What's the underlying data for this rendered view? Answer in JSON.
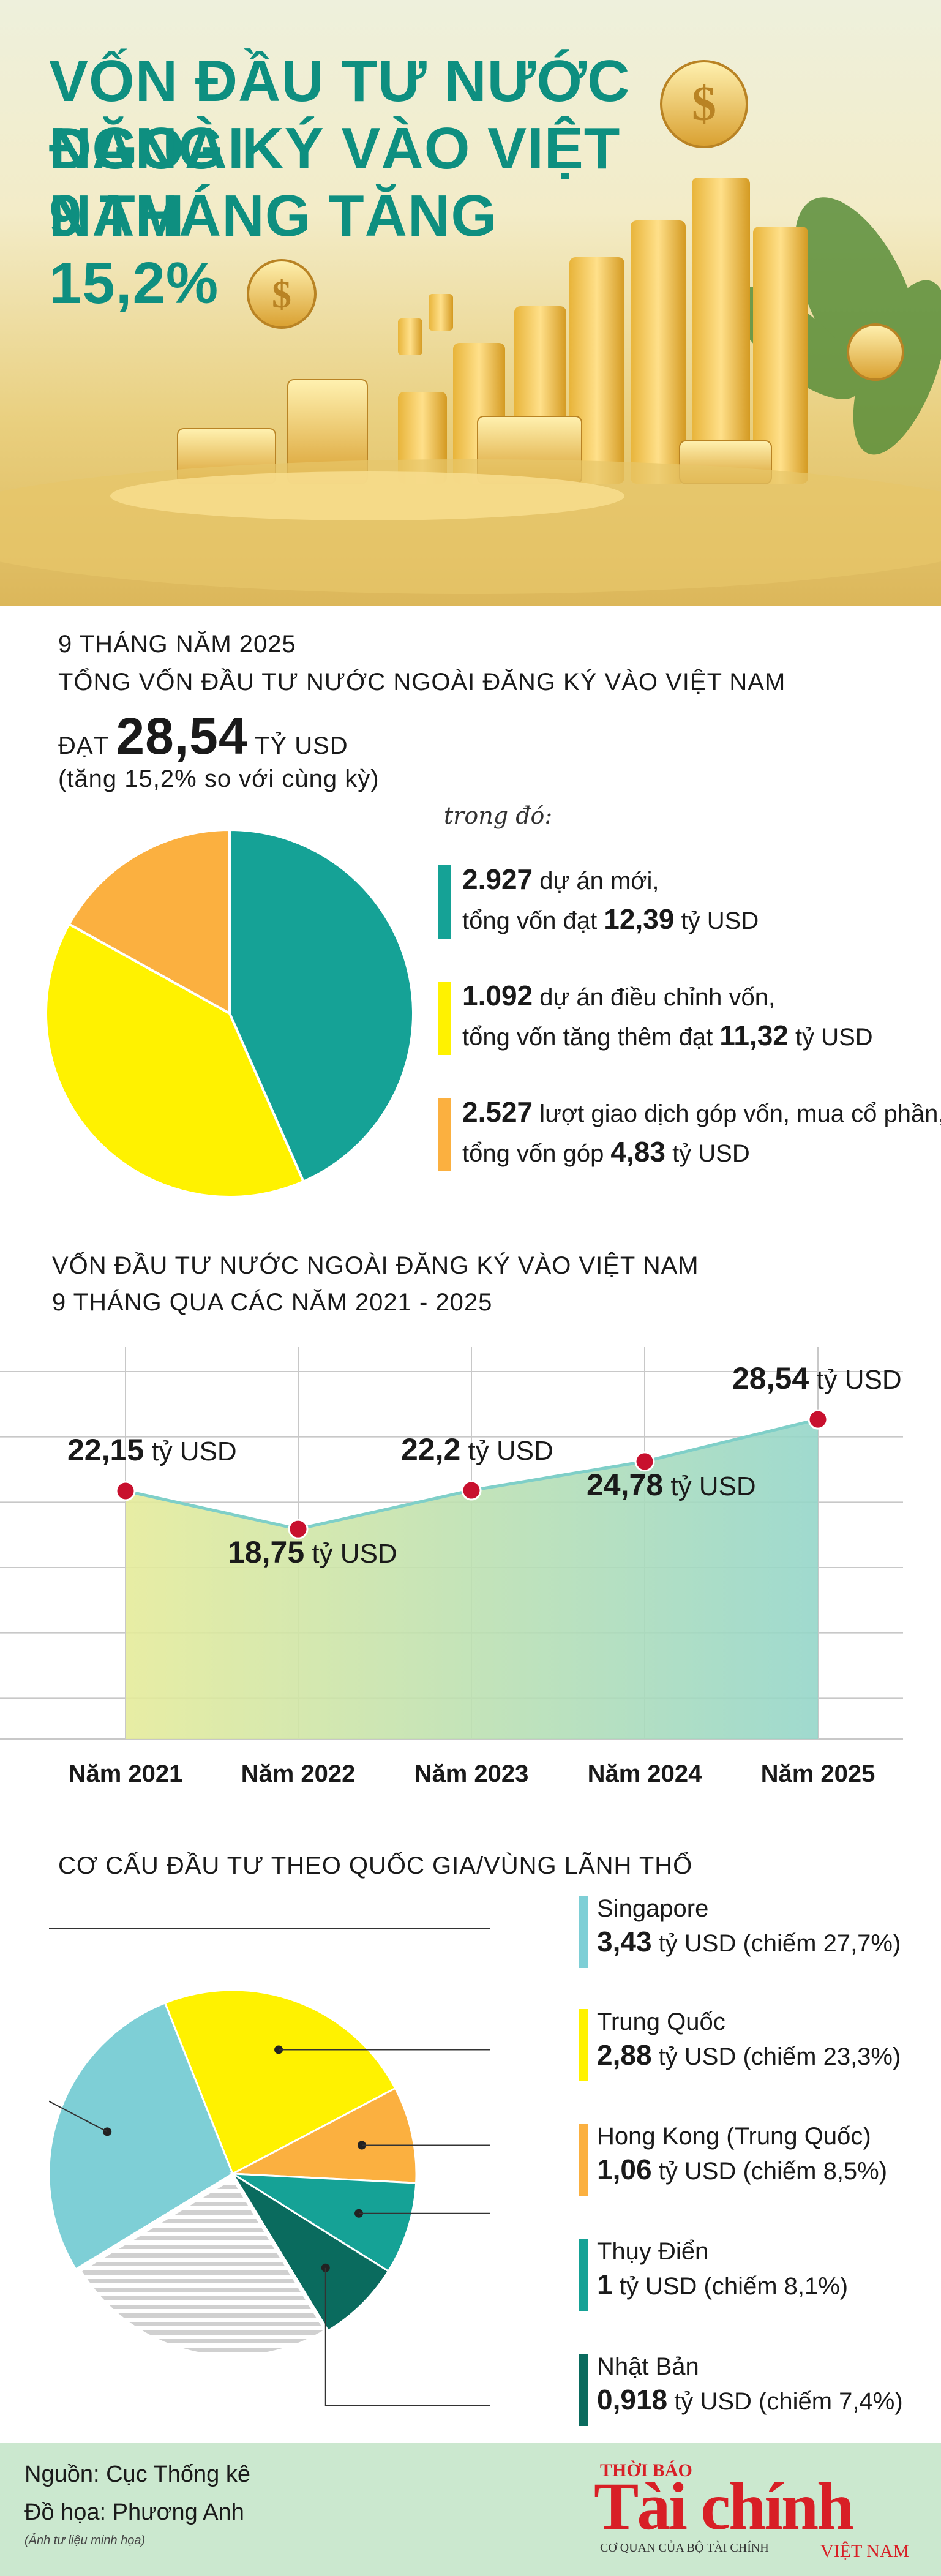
{
  "header": {
    "title_lines": [
      "VỐN ĐẦU TƯ NƯỚC NGOÀI",
      "ĐĂNG KÝ VÀO VIỆT NAM",
      "9 THÁNG TĂNG 15,2%"
    ]
  },
  "summary": {
    "period": "9 THÁNG NĂM 2025",
    "heading": "TỔNG VỐN ĐẦU TƯ NƯỚC NGOÀI ĐĂNG KÝ VÀO VIỆT NAM",
    "reach_label": "ĐẠT",
    "total_value": "28,54",
    "total_unit": "TỶ USD",
    "growth_note": "(tăng 15,2% so với cùng kỳ)",
    "breakdown_label": "trong đó:",
    "items": [
      {
        "count": "2.927",
        "count_text": " dự án mới,",
        "value_prefix": "tổng vốn đạt ",
        "value": "12,39",
        "value_unit": " tỷ USD",
        "color": "#15a296"
      },
      {
        "count": "1.092",
        "count_text": " dự án điều chỉnh vốn,",
        "value_prefix": "tổng vốn tăng thêm đạt ",
        "value": "11,32",
        "value_unit": " tỷ USD",
        "color": "#fff200"
      },
      {
        "count": "2.527",
        "count_text": " lượt giao dịch góp vốn, mua cổ phần,",
        "value_prefix": "tổng vốn góp ",
        "value": "4,83",
        "value_unit": " tỷ USD",
        "color": "#fbb040"
      }
    ]
  },
  "chart_data": [
    {
      "type": "pie",
      "title": "",
      "categories": [
        "dự án mới",
        "dự án điều chỉnh vốn",
        "góp vốn, mua cổ phần"
      ],
      "values": [
        12.39,
        11.32,
        4.83
      ],
      "colors": [
        "#15a296",
        "#fff200",
        "#fbb040"
      ]
    },
    {
      "type": "area",
      "title": "VỐN ĐẦU TƯ NƯỚC NGOÀI ĐĂNG KÝ VÀO VIỆT NAM",
      "subtitle": "9 THÁNG QUA CÁC NĂM 2021 - 2025",
      "categories": [
        "Năm 2021",
        "Năm 2022",
        "Năm 2023",
        "Năm 2024",
        "Năm 2025"
      ],
      "values": [
        22.15,
        18.75,
        22.2,
        24.78,
        28.54
      ],
      "value_labels": [
        "22,15",
        "18,75",
        "22,2",
        "24,78",
        "28,54"
      ],
      "unit": "tỷ USD",
      "ylim": [
        0,
        35
      ],
      "grid": true
    },
    {
      "type": "pie",
      "title": "CƠ CẤU ĐẦU TƯ THEO QUỐC GIA/VÙNG LÃNH THỔ",
      "categories": [
        "Singapore",
        "Trung Quốc",
        "Hong Kong (Trung Quốc)",
        "Thụy Điển",
        "Nhật Bản",
        ""
      ],
      "values": [
        27.7,
        23.3,
        8.5,
        8.1,
        7.4,
        25.0
      ],
      "colors": [
        "#7ecfd6",
        "#fff200",
        "#fbb040",
        "#15a296",
        "#0a6b5e",
        "hatched-gray"
      ]
    }
  ],
  "countries": {
    "title": "CƠ CẤU ĐẦU TƯ THEO QUỐC GIA/VÙNG LÃNH THỔ",
    "items": [
      {
        "name": "Singapore",
        "value": "3,43",
        "unit": " tỷ USD",
        "share": " (chiếm 27,7%)",
        "color": "#7ecfd6"
      },
      {
        "name": "Trung Quốc",
        "value": "2,88",
        "unit": " tỷ USD",
        "share": " (chiếm 23,3%)",
        "color": "#fff200"
      },
      {
        "name": "Hong Kong (Trung Quốc)",
        "value": "1,06",
        "unit": " tỷ USD",
        "share": " (chiếm 8,5%)",
        "color": "#fbb040"
      },
      {
        "name": "Thụy Điển",
        "value": "1",
        "unit": " tỷ USD",
        "share": " (chiếm 8,1%)",
        "color": "#15a296"
      },
      {
        "name": "Nhật Bản",
        "value": "0,918",
        "unit": " tỷ USD",
        "share": " (chiếm 7,4%)",
        "color": "#0a6b5e"
      }
    ]
  },
  "footer": {
    "source": "Nguồn: Cục Thống kê",
    "design": "Đồ họa: Phương Anh",
    "image_note": "(Ảnh tư liệu minh họa)",
    "logo_top": "THỜI BÁO",
    "logo_main": "Tài chính",
    "logo_sub": "VIỆT NAM",
    "logo_tagline": "CƠ QUAN CỦA BỘ TÀI CHÍNH"
  }
}
